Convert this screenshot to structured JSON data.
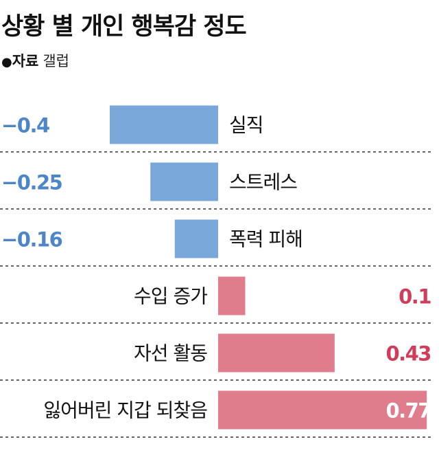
{
  "title": "상황 별 개인 행복감 정도",
  "source": {
    "bullet": "●",
    "label": "자료",
    "value": "갤럽"
  },
  "colors": {
    "negative": "#7aa7d9",
    "positive": "#e07d8d",
    "negative_text": "#4d86c8",
    "positive_text": "#d13c5a",
    "grid": "#333333"
  },
  "chart_data": {
    "type": "bar",
    "orientation": "horizontal",
    "categories": [
      "실직",
      "스트레스",
      "폭력 피해",
      "수입 증가",
      "자선 활동",
      "잃어버린 지갑 되찾음"
    ],
    "values": [
      -0.4,
      -0.25,
      -0.16,
      0.1,
      0.43,
      0.77
    ],
    "value_labels": [
      "−0.4",
      "−0.25",
      "−0.16",
      "0.1",
      "0.43",
      "0.77"
    ],
    "xlim": [
      -0.45,
      0.77
    ],
    "grid": "dashed row separators"
  }
}
